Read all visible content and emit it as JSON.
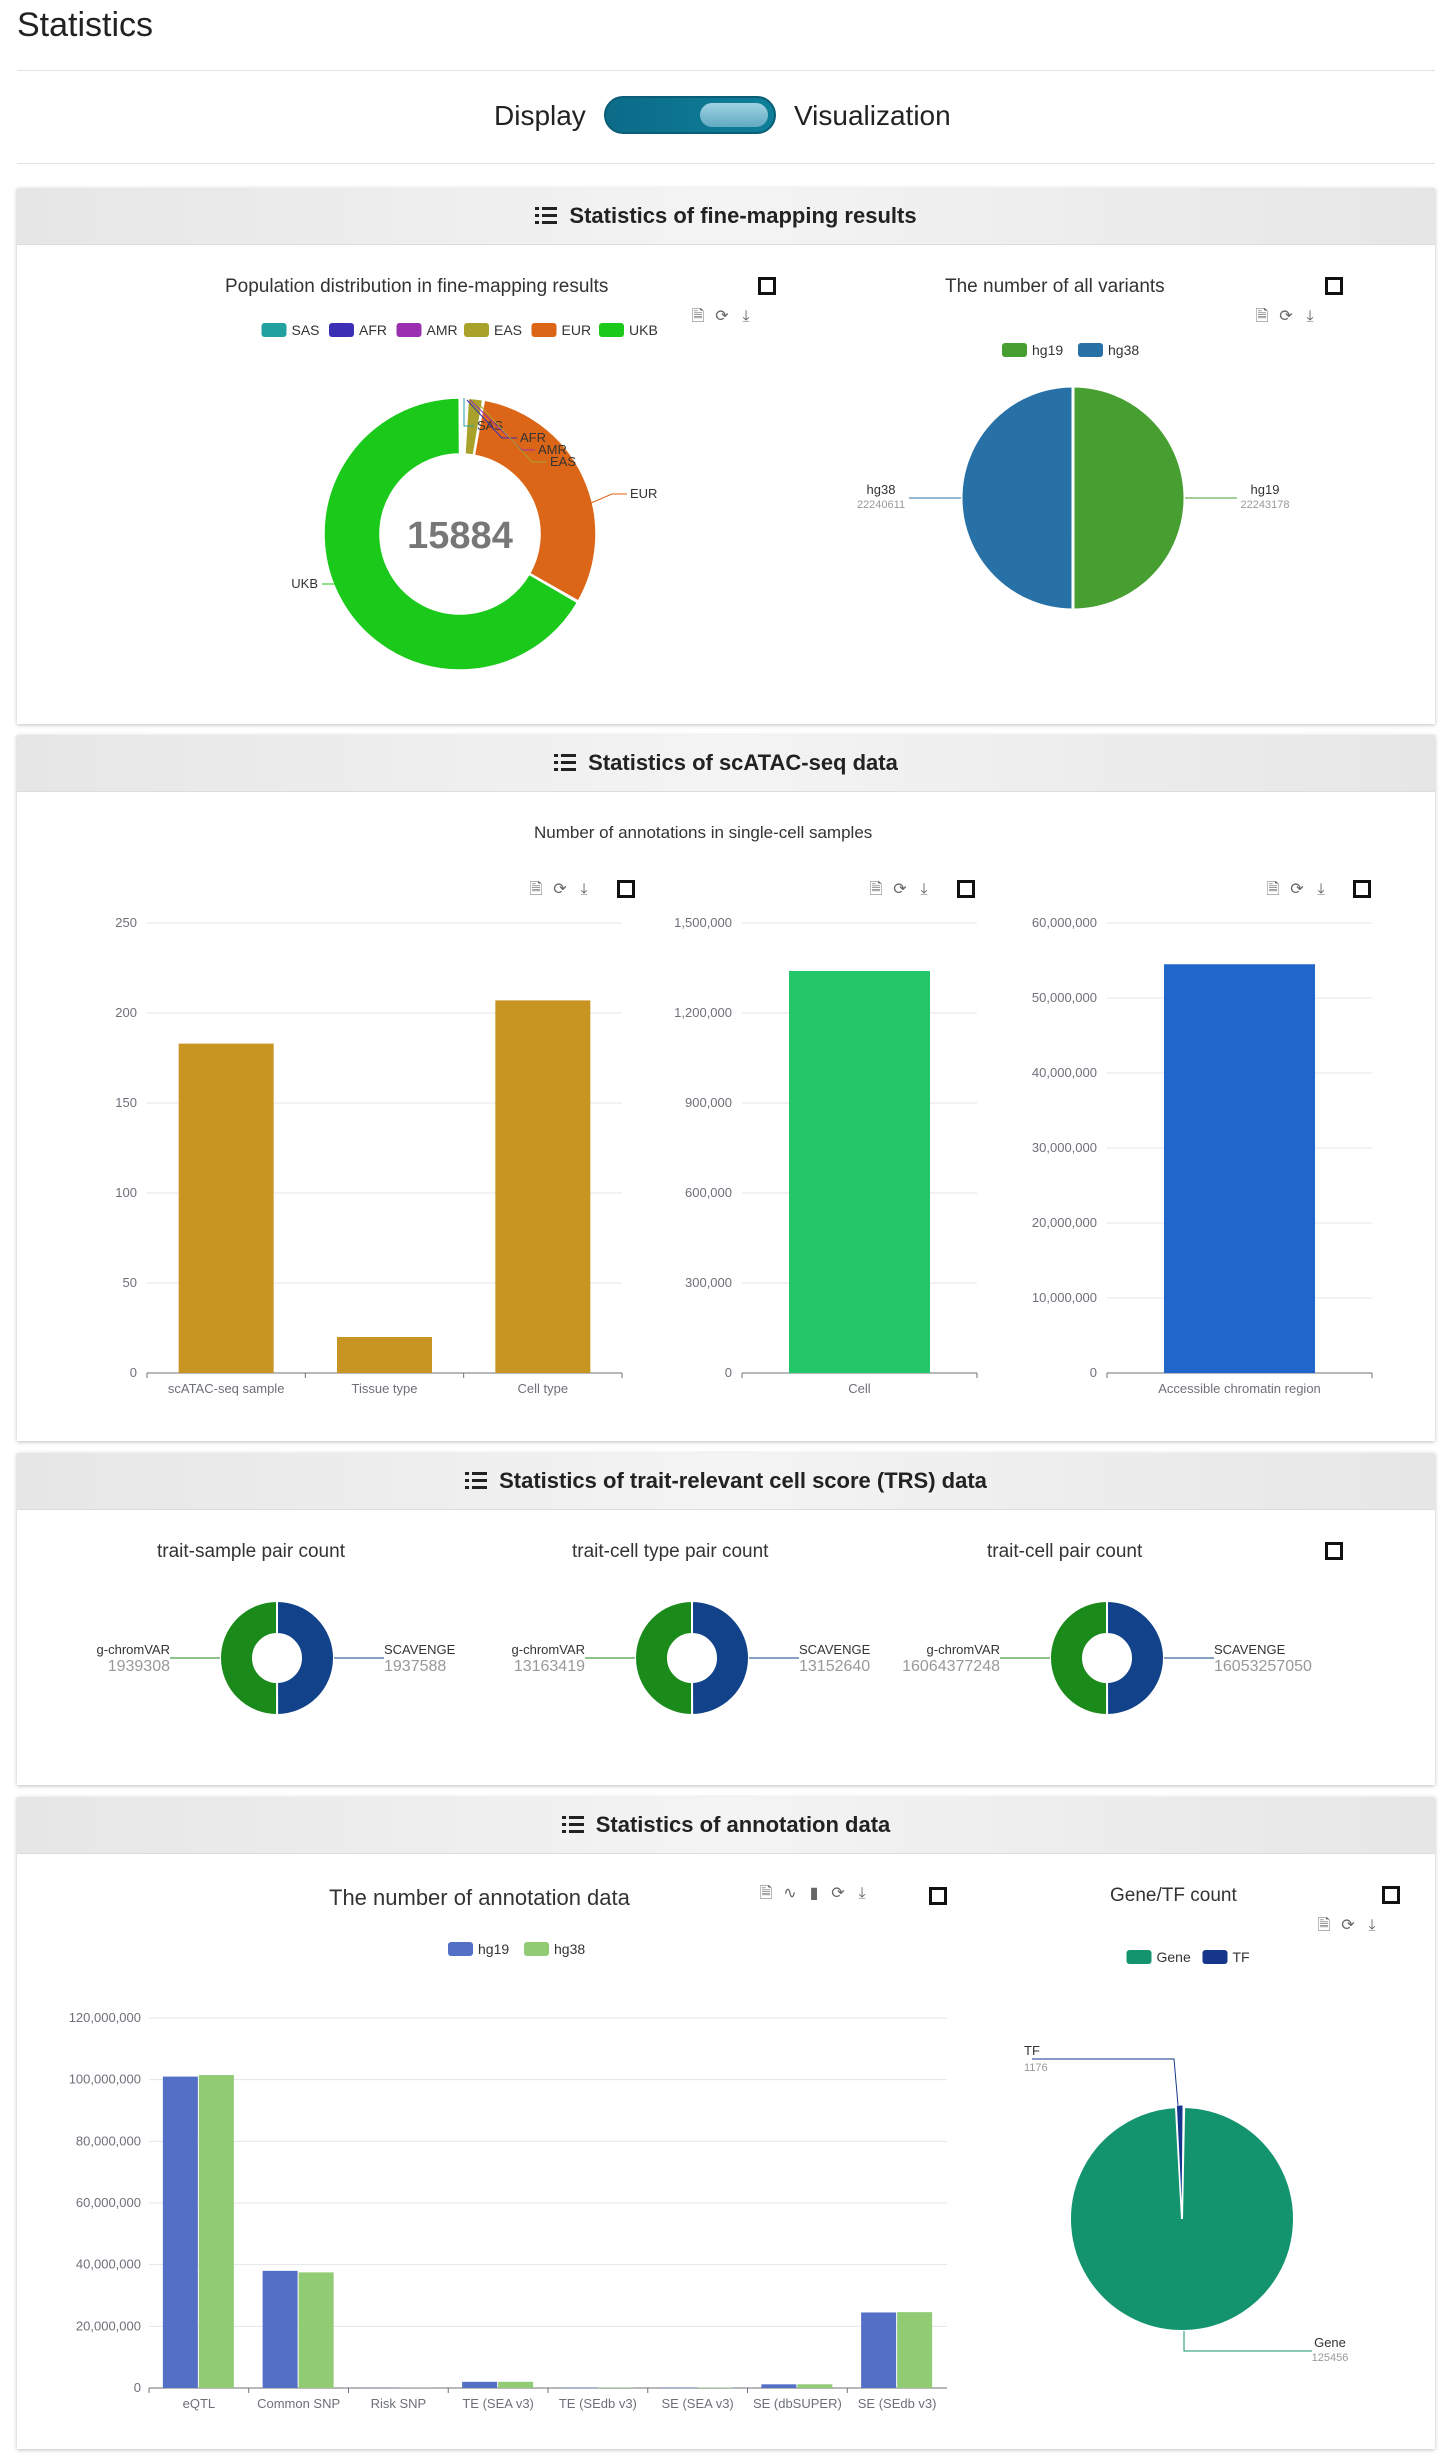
{
  "page": {
    "title": "Statistics"
  },
  "view_toggle": {
    "left_label": "Display",
    "right_label": "Visualization",
    "state": "Visualization"
  },
  "toolbox": {
    "icons": [
      "data-view-icon",
      "restore-icon",
      "save-image-icon"
    ],
    "annotation_icons": [
      "data-view-icon",
      "line-chart-icon",
      "bar-chart-icon",
      "restore-icon",
      "save-image-icon"
    ]
  },
  "sections": {
    "finemap": {
      "heading": "Statistics of fine-mapping results"
    },
    "scatac": {
      "heading": "Statistics of scATAC-seq data",
      "subtitle": "Number of annotations in single-cell samples"
    },
    "trs": {
      "heading": "Statistics of trait-relevant cell score (TRS) data"
    },
    "annotation": {
      "heading": "Statistics of annotation data"
    }
  },
  "chart_data": [
    {
      "id": "population",
      "type": "pie",
      "title": "Population distribution in fine-mapping results",
      "center_label": "15884",
      "legend_position": "top",
      "series": [
        {
          "name": "SAS",
          "value": 40,
          "color": "#22a1a1"
        },
        {
          "name": "AFR",
          "value": 40,
          "color": "#3b2fb5"
        },
        {
          "name": "AMR",
          "value": 60,
          "color": "#9a2fb0"
        },
        {
          "name": "EAS",
          "value": 300,
          "color": "#a8a22a"
        },
        {
          "name": "EUR",
          "value": 4850,
          "color": "#dc6617"
        },
        {
          "name": "UKB",
          "value": 10594,
          "color": "#1ac91a"
        }
      ]
    },
    {
      "id": "variants",
      "type": "pie",
      "title": "The number of all variants",
      "legend_position": "top",
      "series": [
        {
          "name": "hg19",
          "value": 22243178,
          "label": "22243178",
          "color": "#479e31"
        },
        {
          "name": "hg38",
          "value": 22240611,
          "label": "22240611",
          "color": "#2771a6"
        }
      ]
    },
    {
      "id": "scatac-counts",
      "type": "bar",
      "categories": [
        "scATAC-seq sample",
        "Tissue type",
        "Cell type"
      ],
      "values": [
        183,
        20,
        207
      ],
      "ylim": [
        0,
        250
      ],
      "yticks": [
        "0",
        "50",
        "100",
        "150",
        "200",
        "250"
      ],
      "color": "#c89422"
    },
    {
      "id": "scatac-cell",
      "type": "bar",
      "categories": [
        "Cell"
      ],
      "values": [
        1340000
      ],
      "ylim": [
        0,
        1500000
      ],
      "yticks": [
        "0",
        "300,000",
        "600,000",
        "900,000",
        "1,200,000",
        "1,500,000"
      ],
      "color": "#23c76a"
    },
    {
      "id": "scatac-region",
      "type": "bar",
      "categories": [
        "Accessible chromatin region"
      ],
      "values": [
        54500000
      ],
      "ylim": [
        0,
        60000000
      ],
      "yticks": [
        "0",
        "10,000,000",
        "20,000,000",
        "30,000,000",
        "40,000,000",
        "50,000,000",
        "60,000,000"
      ],
      "color": "#2167c9"
    },
    {
      "id": "trs-sample",
      "type": "pie",
      "title": "trait-sample pair count",
      "series": [
        {
          "name": "g-chromVAR",
          "value": 1939308,
          "label": "1939308",
          "color": "#1a8a1a"
        },
        {
          "name": "SCAVENGE",
          "value": 1937588,
          "label": "1937588",
          "color": "#12428a"
        }
      ]
    },
    {
      "id": "trs-celltype",
      "type": "pie",
      "title": "trait-cell type pair count",
      "series": [
        {
          "name": "g-chromVAR",
          "value": 13163419,
          "label": "13163419",
          "color": "#1a8a1a"
        },
        {
          "name": "SCAVENGE",
          "value": 13152640,
          "label": "13152640",
          "color": "#12428a"
        }
      ]
    },
    {
      "id": "trs-cell",
      "type": "pie",
      "title": "trait-cell pair count",
      "series": [
        {
          "name": "g-chromVAR",
          "value": 16064377248,
          "label": "16064377248",
          "color": "#1a8a1a"
        },
        {
          "name": "SCAVENGE",
          "value": 16053257050,
          "label": "16053257050",
          "color": "#12428a"
        }
      ]
    },
    {
      "id": "annotation",
      "type": "bar",
      "title": "The number of annotation data",
      "legend_position": "top",
      "categories": [
        "eQTL",
        "Common SNP",
        "Risk SNP",
        "TE (SEA v3)",
        "TE (SEdb v3)",
        "SE (SEA v3)",
        "SE (dbSUPER)",
        "SE (SEdb v3)"
      ],
      "ylim": [
        0,
        120000000
      ],
      "yticks": [
        "0",
        "20,000,000",
        "40,000,000",
        "60,000,000",
        "80,000,000",
        "100,000,000",
        "120,000,000"
      ],
      "series": [
        {
          "name": "hg19",
          "color": "#5470c6",
          "values": [
            101000000,
            38000000,
            50000,
            2000000,
            120000,
            150000,
            1200000,
            24500000
          ]
        },
        {
          "name": "hg38",
          "color": "#91cc75",
          "values": [
            101500000,
            37500000,
            50000,
            2000000,
            120000,
            150000,
            1200000,
            24600000
          ]
        }
      ]
    },
    {
      "id": "gene-tf",
      "type": "pie",
      "title": "Gene/TF count",
      "legend_position": "top",
      "series": [
        {
          "name": "Gene",
          "value": 125456,
          "label": "125456",
          "color": "#13946f"
        },
        {
          "name": "TF",
          "value": 1176,
          "label": "1176",
          "color": "#15368a"
        }
      ]
    }
  ]
}
